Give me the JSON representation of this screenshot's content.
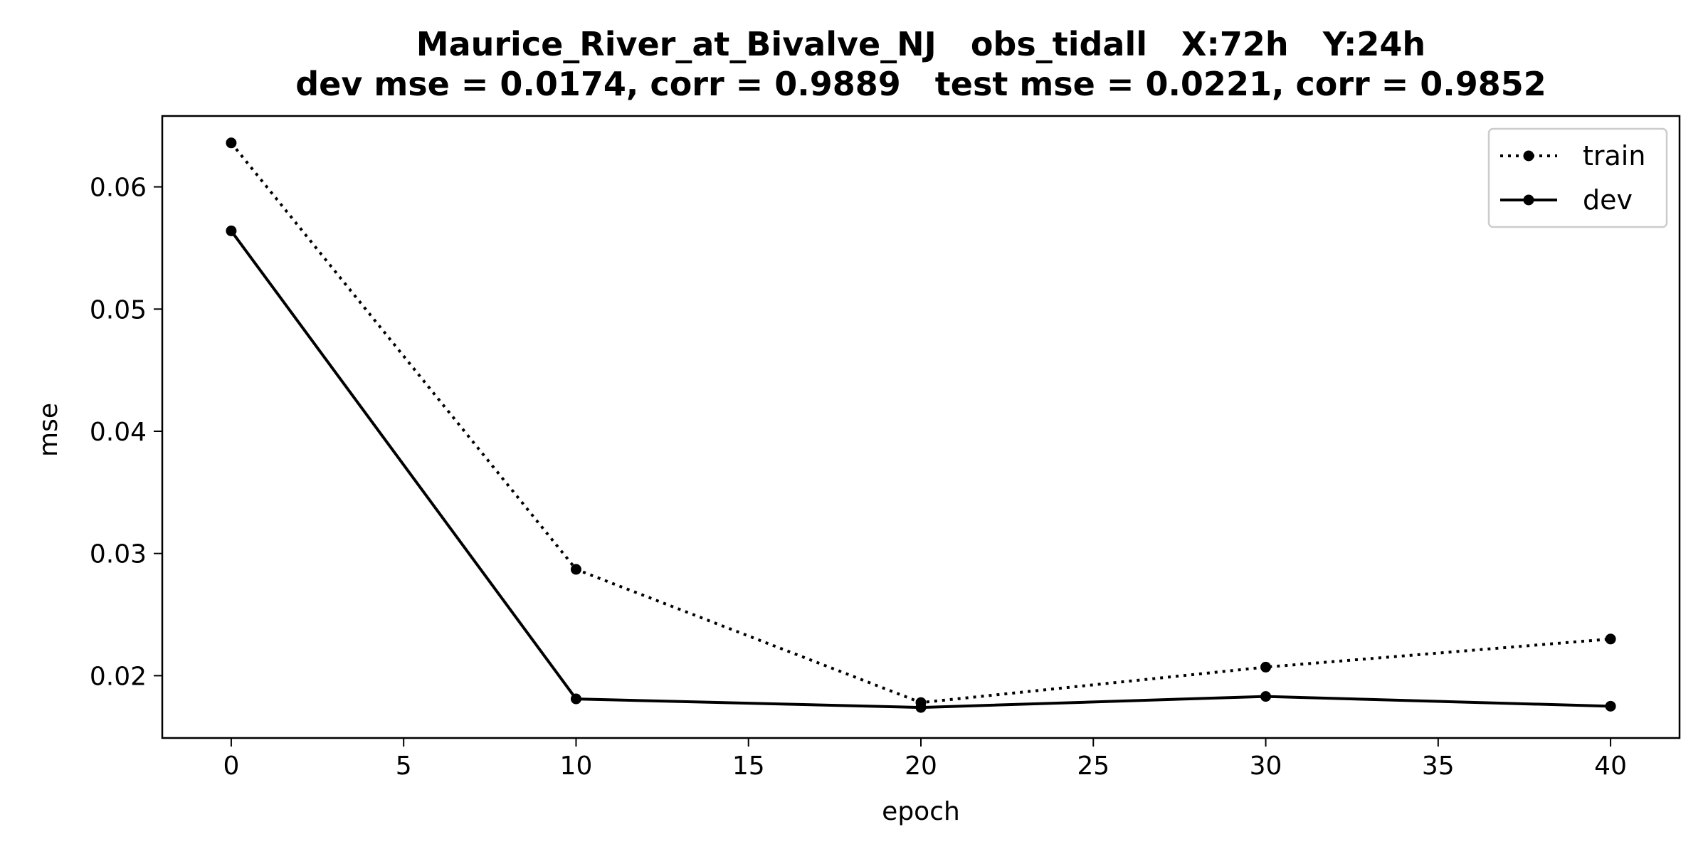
{
  "chart_data": {
    "type": "line",
    "title": "Maurice_River_at_Bivalve_NJ   obs_tidall   X:72h   Y:24h",
    "subtitle": "dev mse = 0.0174, corr = 0.9889   test mse = 0.0221, corr = 0.9852",
    "xlabel": "epoch",
    "ylabel": "mse",
    "x": [
      0,
      10,
      20,
      30,
      40
    ],
    "xlim": [
      -2,
      42
    ],
    "ylim": [
      0.0149,
      0.0658
    ],
    "xticks": [
      0,
      5,
      10,
      15,
      20,
      25,
      30,
      35,
      40
    ],
    "yticks": [
      0.02,
      0.03,
      0.04,
      0.05,
      0.06
    ],
    "ytick_labels": [
      "0.02",
      "0.03",
      "0.04",
      "0.05",
      "0.06"
    ],
    "grid": false,
    "legend_position": "top-right",
    "series": [
      {
        "name": "train",
        "style": "dotted",
        "color": "#000000",
        "values": [
          0.0636,
          0.0287,
          0.0178,
          0.0207,
          0.023
        ]
      },
      {
        "name": "dev",
        "style": "solid",
        "color": "#000000",
        "values": [
          0.0564,
          0.0181,
          0.0174,
          0.0183,
          0.0175
        ]
      }
    ]
  }
}
